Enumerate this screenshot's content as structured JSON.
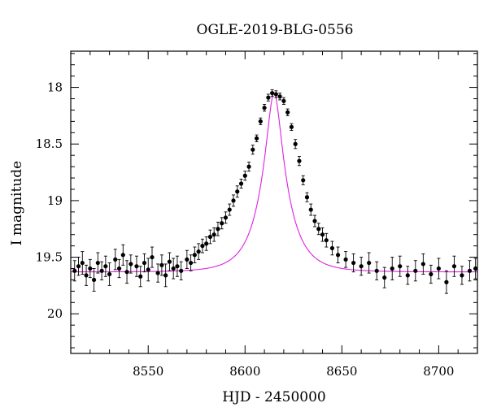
{
  "chart_data": {
    "type": "scatter",
    "title": "OGLE-2019-BLG-0556",
    "xlabel": "HJD - 2450000",
    "ylabel": "I magnitude",
    "xlim": [
      8510,
      8720
    ],
    "ylim": [
      20.35,
      17.68
    ],
    "y_inverted": true,
    "x_ticks": [
      8550,
      8600,
      8650,
      8700
    ],
    "x_tick_labels": [
      "8550",
      "8600",
      "8650",
      "8700"
    ],
    "y_ticks": [
      18,
      18.5,
      19,
      19.5,
      20
    ],
    "y_tick_labels": [
      "18",
      "18.5",
      "19",
      "19.5",
      "20"
    ],
    "grid": false,
    "legend": "none",
    "colors": {
      "points": "#000000",
      "model": "#e020e0",
      "axes": "#000000"
    },
    "model": {
      "name": "",
      "baseline_mag": 19.63,
      "peak_mag": 18.05,
      "t0": 8615,
      "u0": 0.252,
      "tE": 13.5
    },
    "series": [
      {
        "name": "",
        "x": [
          8512,
          8514,
          8516,
          8518,
          8520,
          8522,
          8524,
          8526,
          8528,
          8530,
          8533,
          8535,
          8537,
          8539,
          8541,
          8544,
          8546,
          8548,
          8550,
          8552,
          8555,
          8557,
          8559,
          8561,
          8563,
          8565,
          8567,
          8570,
          8572,
          8574,
          8576,
          8578,
          8580,
          8582,
          8584,
          8586,
          8588,
          8590,
          8592,
          8594,
          8596,
          8598,
          8600,
          8602,
          8604,
          8606,
          8608,
          8610,
          8612,
          8614,
          8616,
          8618,
          8620,
          8622,
          8624,
          8626,
          8628,
          8630,
          8632,
          8634,
          8636,
          8638,
          8640,
          8642,
          8645,
          8648,
          8652,
          8656,
          8660,
          8664,
          8668,
          8672,
          8676,
          8680,
          8684,
          8688,
          8692,
          8696,
          8700,
          8704,
          8708,
          8712,
          8716,
          8719
        ],
        "y": [
          19.62,
          19.58,
          19.55,
          19.66,
          19.6,
          19.7,
          19.55,
          19.62,
          19.58,
          19.65,
          19.52,
          19.6,
          19.48,
          19.63,
          19.56,
          19.58,
          19.67,
          19.55,
          19.61,
          19.5,
          19.64,
          19.57,
          19.66,
          19.54,
          19.6,
          19.58,
          19.62,
          19.52,
          19.55,
          19.48,
          19.45,
          19.4,
          19.38,
          19.32,
          19.3,
          19.25,
          19.2,
          19.15,
          19.08,
          19.0,
          18.92,
          18.85,
          18.78,
          18.7,
          18.55,
          18.45,
          18.3,
          18.18,
          18.09,
          18.05,
          18.06,
          18.08,
          18.12,
          18.22,
          18.35,
          18.5,
          18.65,
          18.82,
          18.97,
          19.08,
          19.18,
          19.25,
          19.3,
          19.35,
          19.42,
          19.48,
          19.52,
          19.55,
          19.58,
          19.55,
          19.62,
          19.68,
          19.6,
          19.58,
          19.66,
          19.62,
          19.56,
          19.65,
          19.6,
          19.72,
          19.58,
          19.66,
          19.62,
          19.6
        ],
        "yerr": [
          0.09,
          0.08,
          0.1,
          0.09,
          0.08,
          0.1,
          0.09,
          0.08,
          0.09,
          0.1,
          0.09,
          0.08,
          0.09,
          0.1,
          0.08,
          0.09,
          0.09,
          0.08,
          0.1,
          0.09,
          0.08,
          0.09,
          0.1,
          0.08,
          0.09,
          0.09,
          0.08,
          0.08,
          0.07,
          0.07,
          0.07,
          0.06,
          0.06,
          0.06,
          0.06,
          0.06,
          0.05,
          0.05,
          0.05,
          0.05,
          0.05,
          0.04,
          0.04,
          0.04,
          0.04,
          0.03,
          0.03,
          0.03,
          0.03,
          0.03,
          0.03,
          0.03,
          0.03,
          0.03,
          0.03,
          0.04,
          0.04,
          0.04,
          0.04,
          0.05,
          0.05,
          0.05,
          0.06,
          0.06,
          0.06,
          0.07,
          0.07,
          0.08,
          0.08,
          0.09,
          0.08,
          0.09,
          0.1,
          0.09,
          0.08,
          0.09,
          0.09,
          0.08,
          0.09,
          0.1,
          0.09,
          0.08,
          0.09,
          0.09
        ]
      }
    ]
  }
}
